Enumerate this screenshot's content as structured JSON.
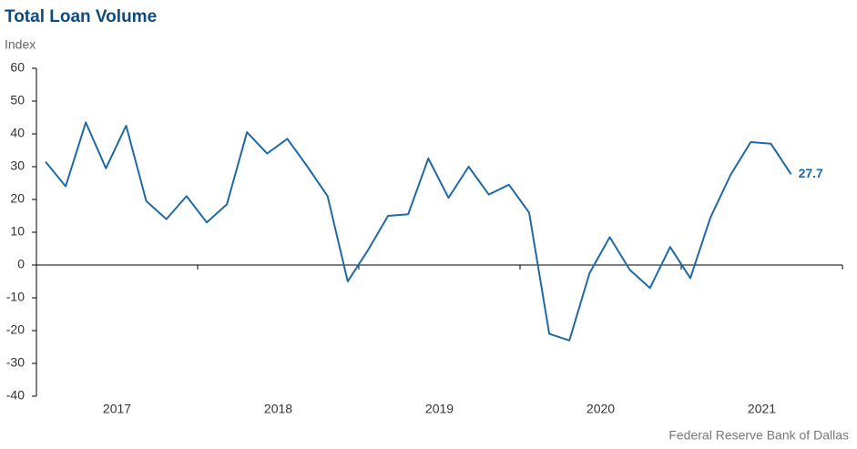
{
  "chart_data": {
    "type": "line",
    "title": "Total Loan Volume",
    "y_label": "Index",
    "source": "Federal Reserve Bank of Dallas",
    "x_labels": [
      "2017",
      "2018",
      "2019",
      "2020",
      "2021"
    ],
    "values": [
      31.5,
      24,
      43.5,
      29.5,
      42.5,
      19.5,
      14,
      21,
      13,
      18.5,
      40.5,
      34,
      38.5,
      30,
      21,
      -5,
      4.5,
      15,
      15.5,
      32.5,
      20.5,
      30,
      21.5,
      24.5,
      16,
      -21,
      -23,
      -2.5,
      8.5,
      -1.5,
      -7,
      5.5,
      -4,
      14.5,
      27.5,
      37.5,
      37,
      27.7
    ],
    "color": "#1f6aa5",
    "ylim": [
      -40,
      60
    ],
    "yticks": [
      -40,
      -30,
      -20,
      -10,
      0,
      10,
      20,
      30,
      40,
      50,
      60
    ]
  }
}
